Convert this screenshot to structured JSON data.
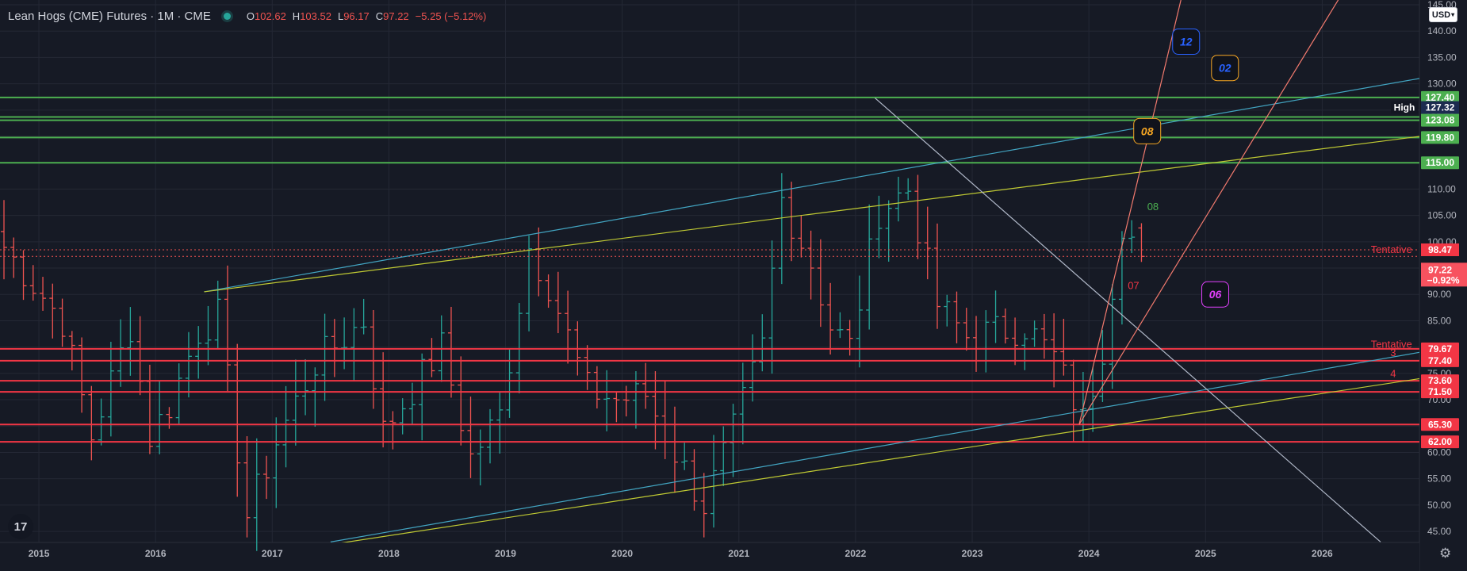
{
  "header": {
    "symbol": "Lean Hogs (CME) Futures · 1M · CME",
    "open_label": "O",
    "open": "102.62",
    "high_label": "H",
    "high": "103.52",
    "low_label": "L",
    "low": "96.17",
    "close_label": "C",
    "close": "97.22",
    "change": "−5.25 (−5.12%)"
  },
  "currency": "USD",
  "logo_text": "17",
  "chart_data": {
    "type": "bar",
    "ohlc": "monthly",
    "x_range": [
      "2014-09",
      "2026-11"
    ],
    "ylim": [
      42,
      145
    ],
    "x_ticks": [
      "2015",
      "2016",
      "2017",
      "2018",
      "2019",
      "2020",
      "2021",
      "2022",
      "2023",
      "2024",
      "2025",
      "2026"
    ],
    "y_ticks": [
      "45.00",
      "50.00",
      "55.00",
      "60.00",
      "65.00",
      "70.00",
      "75.00",
      "80.00",
      "85.00",
      "90.00",
      "95.00",
      "100.00",
      "105.00",
      "110.00",
      "115.00",
      "120.00",
      "125.00",
      "130.00",
      "135.00",
      "140.00",
      "145.00"
    ],
    "anchors": [
      [
        "2014-09",
        99
      ],
      [
        "2015-03",
        85
      ],
      [
        "2015-06",
        63
      ],
      [
        "2015-10",
        84
      ],
      [
        "2015-12",
        63
      ],
      [
        "2016-02",
        69
      ],
      [
        "2016-05",
        83
      ],
      [
        "2016-07",
        86
      ],
      [
        "2016-10",
        48
      ],
      [
        "2017-01",
        62
      ],
      [
        "2017-05",
        77
      ],
      [
        "2017-10",
        85
      ],
      [
        "2017-12",
        64
      ],
      [
        "2018-03",
        72
      ],
      [
        "2018-06",
        80
      ],
      [
        "2018-09",
        59
      ],
      [
        "2018-12",
        67
      ],
      [
        "2019-03",
        99
      ],
      [
        "2019-05",
        92
      ],
      [
        "2019-09",
        72
      ],
      [
        "2019-12",
        70
      ],
      [
        "2020-03",
        71
      ],
      [
        "2020-06",
        60
      ],
      [
        "2020-09",
        50
      ],
      [
        "2020-12",
        64
      ],
      [
        "2021-03",
        80
      ],
      [
        "2021-05",
        108
      ],
      [
        "2021-08",
        96
      ],
      [
        "2021-10",
        84
      ],
      [
        "2021-12",
        80
      ],
      [
        "2022-03",
        106
      ],
      [
        "2022-06",
        110
      ],
      [
        "2022-09",
        88
      ],
      [
        "2022-12",
        82
      ],
      [
        "2023-03",
        83
      ],
      [
        "2023-06",
        84
      ],
      [
        "2023-09",
        78
      ],
      [
        "2023-12",
        66
      ],
      [
        "2024-02",
        80
      ],
      [
        "2024-04",
        104
      ],
      [
        "2024-06",
        97.22
      ]
    ],
    "horizontal_levels": [
      {
        "price": 127.4,
        "label": "127.40",
        "color": "#4caf50"
      },
      {
        "price": 123.7,
        "label": "123.70",
        "color": "#4caf50"
      },
      {
        "price": 123.08,
        "label": "123.08",
        "color": "#4caf50"
      },
      {
        "price": 119.8,
        "label": "119.80",
        "color": "#4caf50"
      },
      {
        "price": 115.0,
        "label": "115.00",
        "color": "#4caf50"
      },
      {
        "price": 79.67,
        "label": "79.67",
        "color": "#f23645"
      },
      {
        "price": 77.4,
        "label": "77.40",
        "color": "#f23645"
      },
      {
        "price": 73.6,
        "label": "73.60",
        "color": "#f23645"
      },
      {
        "price": 71.5,
        "label": "71.50",
        "color": "#f23645"
      },
      {
        "price": 65.3,
        "label": "65.30",
        "color": "#f23645"
      },
      {
        "price": 62.0,
        "label": "62.00",
        "color": "#f23645"
      }
    ],
    "high_marker": {
      "label": "High",
      "value": "127.32"
    },
    "dotted_levels": [
      {
        "price": 98.47,
        "label": "98.47"
      },
      {
        "price": 97.22,
        "label": "97.22",
        "sub": "−0.92%"
      }
    ],
    "trendlines": [
      {
        "from": [
          "2016-06",
          90.5
        ],
        "to": [
          "2026-11",
          131
        ],
        "color": "#42a5c2"
      },
      {
        "from": [
          "2016-06",
          90.5
        ],
        "to": [
          "2026-11",
          120
        ],
        "color": "#c0ca33"
      },
      {
        "from": [
          "2017-07",
          43
        ],
        "to": [
          "2026-11",
          79
        ],
        "color": "#42a5c2"
      },
      {
        "from": [
          "2017-07",
          42.5
        ],
        "to": [
          "2026-11",
          74
        ],
        "color": "#c0ca33"
      },
      {
        "from": [
          "2022-03",
          127.3
        ],
        "to": [
          "2026-07",
          43
        ],
        "color": "#b0b8c8"
      },
      {
        "from": [
          "2023-12",
          65.3
        ],
        "to": [
          "2024-11",
          150
        ],
        "color": "#f27a6e"
      },
      {
        "from": [
          "2023-12",
          65.3
        ],
        "to": [
          "2026-04",
          150
        ],
        "color": "#f27a6e"
      }
    ],
    "annotations": [
      {
        "text": "12",
        "date": "2024-11",
        "price": 138,
        "color": "#2962ff"
      },
      {
        "text": "02",
        "date": "2025-03",
        "price": 133,
        "color": "#2962ff",
        "border": "#f5a623"
      },
      {
        "text": "08",
        "date": "2024-07",
        "price": 121,
        "color": "#f5a623",
        "border": "#f5a623"
      },
      {
        "text": "06",
        "date": "2025-02",
        "price": 90,
        "color": "#e040fb",
        "border": "#e040fb"
      },
      {
        "text": "08",
        "date": "2024-07",
        "price": 106,
        "color": "#4caf50",
        "plain": true
      },
      {
        "text": "07",
        "date": "2024-05",
        "price": 91,
        "color": "#f23645",
        "plain": true
      },
      {
        "text": "Tentative",
        "date": "2026-06",
        "price": 97.9,
        "color": "#f23645",
        "plain": true
      },
      {
        "text": "Tentative",
        "date": "2026-06",
        "price": 79.9,
        "color": "#f23645",
        "plain": true
      },
      {
        "text": "3",
        "date": "2026-08",
        "price": 78.3,
        "color": "#f23645",
        "plain": true
      },
      {
        "text": "4",
        "date": "2026-08",
        "price": 74.3,
        "color": "#f23645",
        "plain": true
      }
    ]
  }
}
